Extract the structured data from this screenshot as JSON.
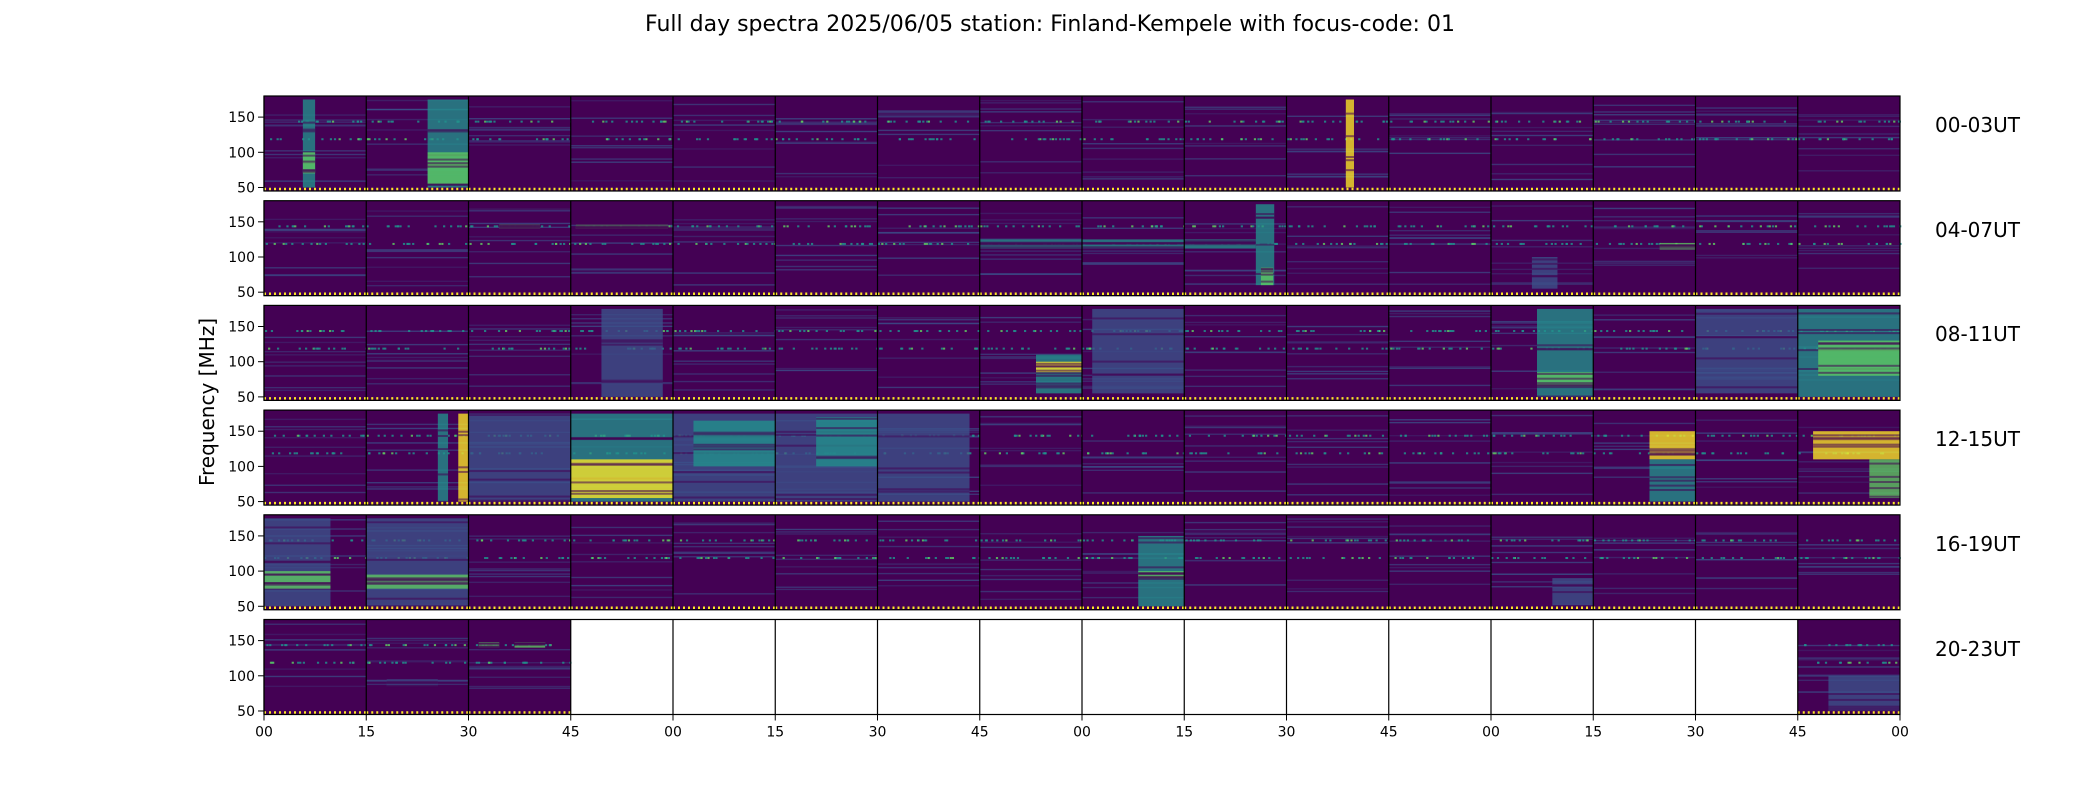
{
  "title": "Full day spectra 2025/06/05 station: Finland-Kempele with focus-code: 01",
  "ylabel": "Frequency [MHz]",
  "colors": {
    "background": "#440154",
    "mid": "#3b528b",
    "teal": "#21918c",
    "green": "#5ec962",
    "bright": "#fde725"
  },
  "chart_data": {
    "type": "heatmap",
    "title": "Full day spectra 2025/06/05 station: Finland-Kempele with focus-code: 01",
    "ylabel": "Frequency [MHz]",
    "xlabel": "",
    "colormap": "viridis",
    "y_ticks": [
      "50",
      "100",
      "150"
    ],
    "ylim": [
      45,
      180
    ],
    "x_ticks": [
      "00",
      "15",
      "30",
      "45",
      "00",
      "15",
      "30",
      "45",
      "00",
      "15",
      "30",
      "45",
      "00",
      "15",
      "30",
      "45",
      "00"
    ],
    "rows": [
      {
        "label": "00-03UT",
        "hours": [
          "00",
          "01",
          "02",
          "03"
        ]
      },
      {
        "label": "04-07UT",
        "hours": [
          "04",
          "05",
          "06",
          "07"
        ]
      },
      {
        "label": "08-11UT",
        "hours": [
          "08",
          "09",
          "10",
          "11"
        ]
      },
      {
        "label": "12-15UT",
        "hours": [
          "12",
          "13",
          "14",
          "15"
        ]
      },
      {
        "label": "16-19UT",
        "hours": [
          "16",
          "17",
          "18",
          "19"
        ]
      },
      {
        "label": "20-23UT",
        "hours": [
          "20",
          "21",
          "22",
          "23"
        ]
      }
    ],
    "segments_per_row": 16,
    "segment_minutes": 15,
    "missing_segments": {
      "row": 5,
      "from": 3,
      "to": 14
    },
    "intensity_levels": {
      "low": 0.0,
      "mid": 0.35,
      "high": 0.65,
      "max": 1.0
    }
  }
}
